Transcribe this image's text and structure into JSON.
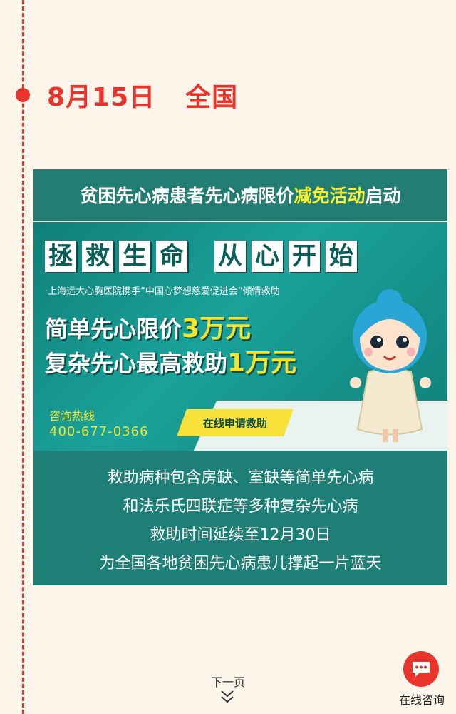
{
  "timeline": {
    "date": "8月15日",
    "region": "全国"
  },
  "card": {
    "title_prefix": "贫困先心病患者先心病限价",
    "title_highlight": "减免活动",
    "title_suffix": "启动",
    "banner": {
      "headline_chars": [
        "拯",
        "救",
        "生",
        "命",
        "从",
        "心",
        "开",
        "始"
      ],
      "subtitle": "·上海远大心胸医院携手“中国心梦想慈爱促进会”倾情救助",
      "line1_text": "简单先心限价",
      "line1_num": "3万元",
      "line2_text": "复杂先心最高救助",
      "line2_num": "1万元",
      "hotline_label": "咨询热线",
      "hotline_number": "400-677-0366",
      "apply_button": "在线申请救助"
    },
    "body_lines": [
      "救助病种包含房缺、室缺等简单先心病",
      "和法乐氏四联症等多种复杂先心病",
      "救助时间延续至12月30日",
      "为全国各地贫困先心病患儿撑起一片蓝天"
    ]
  },
  "footer": {
    "next_page": "下一页",
    "consult": "在线咨询"
  },
  "colors": {
    "accent": "#e8342b",
    "teal": "#1d7f76",
    "highlight": "#f6f032",
    "background": "#fdf4ea"
  }
}
